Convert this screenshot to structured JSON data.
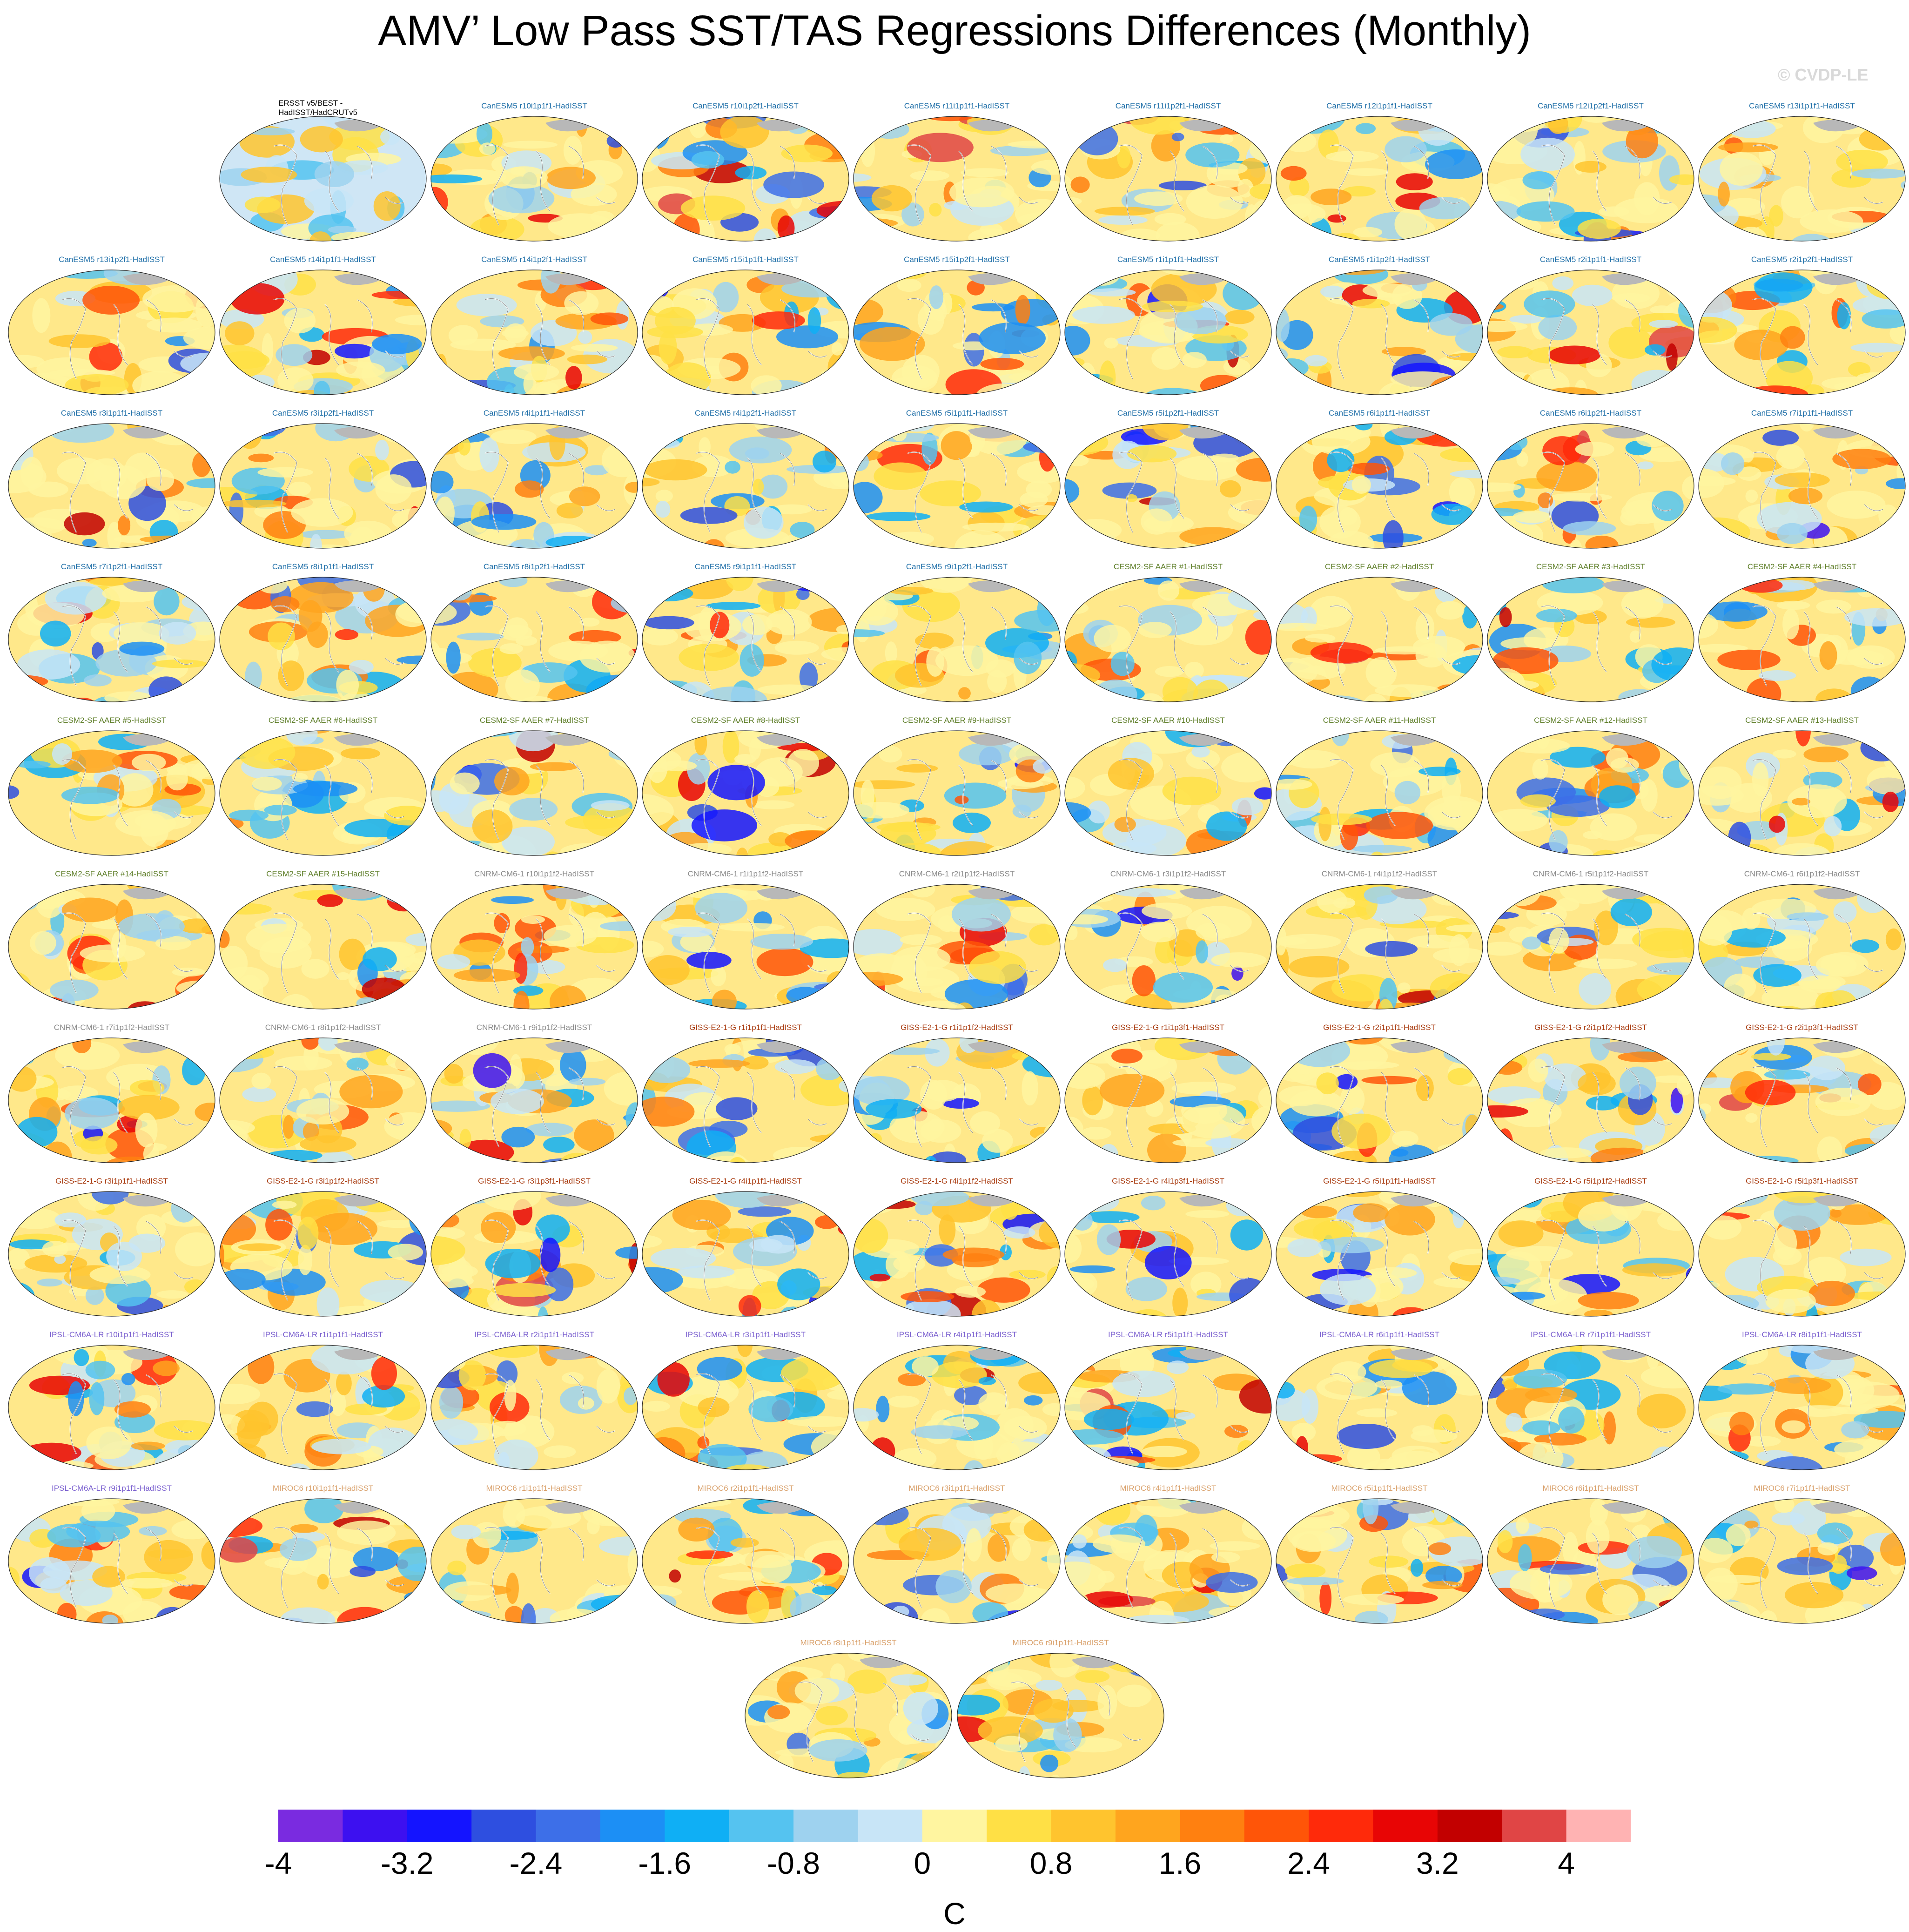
{
  "title": "AMV’ Low Pass SST/TAS Regressions Differences (Monthly)",
  "watermark": "© CVDP-LE",
  "colors": {
    "CanESM5": "#1f6fa8",
    "CESM2-SF AAER": "#5f7f2a",
    "CNRM-CM6-1": "#8a8a8a",
    "GISS-E2-1-G": "#a83a0e",
    "IPSL-CM6A-LR": "#7a5fcf",
    "MIROC6": "#d9a06a",
    "obs": "#000000"
  },
  "colorbar": {
    "units": "C",
    "levels": [
      -4.4,
      -4,
      -3.6,
      -3.2,
      -2.8,
      -2.4,
      -2,
      -1.6,
      -1.2,
      -0.8,
      -0.4,
      0,
      0.4,
      0.8,
      1.2,
      1.6,
      2,
      2.4,
      2.8,
      3.2,
      3.6,
      4,
      4.4
    ],
    "colors": [
      "#7a2be0",
      "#3d10f0",
      "#1414ff",
      "#2e4fe0",
      "#3d6fe8",
      "#1c8ff5",
      "#0faff5",
      "#55c3f0",
      "#9ed2ef",
      "#c8e5f7",
      "#fff5a0",
      "#ffe045",
      "#ffc42e",
      "#ffa51e",
      "#ff8010",
      "#ff5508",
      "#ff2a0a",
      "#e80505",
      "#c20000",
      "#e04545",
      "#ffb3b3"
    ],
    "tick_labels": [
      "-4",
      "-3.2",
      "-2.4",
      "-1.6",
      "-0.8",
      "0",
      "0.8",
      "1.6",
      "2.4",
      "3.2",
      "4"
    ]
  },
  "panels": [
    {
      "label": "ERSST v5/BEST -\nHadISST/HadCRUTv5",
      "model": "obs"
    },
    {
      "label": "CanESM5 r10i1p1f1-HadISST",
      "model": "CanESM5"
    },
    {
      "label": "CanESM5 r10i1p2f1-HadISST",
      "model": "CanESM5"
    },
    {
      "label": "CanESM5 r11i1p1f1-HadISST",
      "model": "CanESM5"
    },
    {
      "label": "CanESM5 r11i1p2f1-HadISST",
      "model": "CanESM5"
    },
    {
      "label": "CanESM5 r12i1p1f1-HadISST",
      "model": "CanESM5"
    },
    {
      "label": "CanESM5 r12i1p2f1-HadISST",
      "model": "CanESM5"
    },
    {
      "label": "CanESM5 r13i1p1f1-HadISST",
      "model": "CanESM5"
    },
    {
      "label": "CanESM5 r13i1p2f1-HadISST",
      "model": "CanESM5"
    },
    {
      "label": "CanESM5 r14i1p1f1-HadISST",
      "model": "CanESM5"
    },
    {
      "label": "CanESM5 r14i1p2f1-HadISST",
      "model": "CanESM5"
    },
    {
      "label": "CanESM5 r15i1p1f1-HadISST",
      "model": "CanESM5"
    },
    {
      "label": "CanESM5 r15i1p2f1-HadISST",
      "model": "CanESM5"
    },
    {
      "label": "CanESM5 r1i1p1f1-HadISST",
      "model": "CanESM5"
    },
    {
      "label": "CanESM5 r1i1p2f1-HadISST",
      "model": "CanESM5"
    },
    {
      "label": "CanESM5 r2i1p1f1-HadISST",
      "model": "CanESM5"
    },
    {
      "label": "CanESM5 r2i1p2f1-HadISST",
      "model": "CanESM5"
    },
    {
      "label": "CanESM5 r3i1p1f1-HadISST",
      "model": "CanESM5"
    },
    {
      "label": "CanESM5 r3i1p2f1-HadISST",
      "model": "CanESM5"
    },
    {
      "label": "CanESM5 r4i1p1f1-HadISST",
      "model": "CanESM5"
    },
    {
      "label": "CanESM5 r4i1p2f1-HadISST",
      "model": "CanESM5"
    },
    {
      "label": "CanESM5 r5i1p1f1-HadISST",
      "model": "CanESM5"
    },
    {
      "label": "CanESM5 r5i1p2f1-HadISST",
      "model": "CanESM5"
    },
    {
      "label": "CanESM5 r6i1p1f1-HadISST",
      "model": "CanESM5"
    },
    {
      "label": "CanESM5 r6i1p2f1-HadISST",
      "model": "CanESM5"
    },
    {
      "label": "CanESM5 r7i1p1f1-HadISST",
      "model": "CanESM5"
    },
    {
      "label": "CanESM5 r7i1p2f1-HadISST",
      "model": "CanESM5"
    },
    {
      "label": "CanESM5 r8i1p1f1-HadISST",
      "model": "CanESM5"
    },
    {
      "label": "CanESM5 r8i1p2f1-HadISST",
      "model": "CanESM5"
    },
    {
      "label": "CanESM5 r9i1p1f1-HadISST",
      "model": "CanESM5"
    },
    {
      "label": "CanESM5 r9i1p2f1-HadISST",
      "model": "CanESM5"
    },
    {
      "label": "CESM2-SF AAER #1-HadISST",
      "model": "CESM2-SF AAER"
    },
    {
      "label": "CESM2-SF AAER #2-HadISST",
      "model": "CESM2-SF AAER"
    },
    {
      "label": "CESM2-SF AAER #3-HadISST",
      "model": "CESM2-SF AAER"
    },
    {
      "label": "CESM2-SF AAER #4-HadISST",
      "model": "CESM2-SF AAER"
    },
    {
      "label": "CESM2-SF AAER #5-HadISST",
      "model": "CESM2-SF AAER"
    },
    {
      "label": "CESM2-SF AAER #6-HadISST",
      "model": "CESM2-SF AAER"
    },
    {
      "label": "CESM2-SF AAER #7-HadISST",
      "model": "CESM2-SF AAER"
    },
    {
      "label": "CESM2-SF AAER #8-HadISST",
      "model": "CESM2-SF AAER"
    },
    {
      "label": "CESM2-SF AAER #9-HadISST",
      "model": "CESM2-SF AAER"
    },
    {
      "label": "CESM2-SF AAER #10-HadISST",
      "model": "CESM2-SF AAER"
    },
    {
      "label": "CESM2-SF AAER #11-HadISST",
      "model": "CESM2-SF AAER"
    },
    {
      "label": "CESM2-SF AAER #12-HadISST",
      "model": "CESM2-SF AAER"
    },
    {
      "label": "CESM2-SF AAER #13-HadISST",
      "model": "CESM2-SF AAER"
    },
    {
      "label": "CESM2-SF AAER #14-HadISST",
      "model": "CESM2-SF AAER"
    },
    {
      "label": "CESM2-SF AAER #15-HadISST",
      "model": "CESM2-SF AAER"
    },
    {
      "label": "CNRM-CM6-1 r10i1p1f2-HadISST",
      "model": "CNRM-CM6-1"
    },
    {
      "label": "CNRM-CM6-1 r1i1p1f2-HadISST",
      "model": "CNRM-CM6-1"
    },
    {
      "label": "CNRM-CM6-1 r2i1p1f2-HadISST",
      "model": "CNRM-CM6-1"
    },
    {
      "label": "CNRM-CM6-1 r3i1p1f2-HadISST",
      "model": "CNRM-CM6-1"
    },
    {
      "label": "CNRM-CM6-1 r4i1p1f2-HadISST",
      "model": "CNRM-CM6-1"
    },
    {
      "label": "CNRM-CM6-1 r5i1p1f2-HadISST",
      "model": "CNRM-CM6-1"
    },
    {
      "label": "CNRM-CM6-1 r6i1p1f2-HadISST",
      "model": "CNRM-CM6-1"
    },
    {
      "label": "CNRM-CM6-1 r7i1p1f2-HadISST",
      "model": "CNRM-CM6-1"
    },
    {
      "label": "CNRM-CM6-1 r8i1p1f2-HadISST",
      "model": "CNRM-CM6-1"
    },
    {
      "label": "CNRM-CM6-1 r9i1p1f2-HadISST",
      "model": "CNRM-CM6-1"
    },
    {
      "label": "GISS-E2-1-G r1i1p1f1-HadISST",
      "model": "GISS-E2-1-G"
    },
    {
      "label": "GISS-E2-1-G r1i1p1f2-HadISST",
      "model": "GISS-E2-1-G"
    },
    {
      "label": "GISS-E2-1-G r1i1p3f1-HadISST",
      "model": "GISS-E2-1-G"
    },
    {
      "label": "GISS-E2-1-G r2i1p1f1-HadISST",
      "model": "GISS-E2-1-G"
    },
    {
      "label": "GISS-E2-1-G r2i1p1f2-HadISST",
      "model": "GISS-E2-1-G"
    },
    {
      "label": "GISS-E2-1-G r2i1p3f1-HadISST",
      "model": "GISS-E2-1-G"
    },
    {
      "label": "GISS-E2-1-G r3i1p1f1-HadISST",
      "model": "GISS-E2-1-G"
    },
    {
      "label": "GISS-E2-1-G r3i1p1f2-HadISST",
      "model": "GISS-E2-1-G"
    },
    {
      "label": "GISS-E2-1-G r3i1p3f1-HadISST",
      "model": "GISS-E2-1-G"
    },
    {
      "label": "GISS-E2-1-G r4i1p1f1-HadISST",
      "model": "GISS-E2-1-G"
    },
    {
      "label": "GISS-E2-1-G r4i1p1f2-HadISST",
      "model": "GISS-E2-1-G"
    },
    {
      "label": "GISS-E2-1-G r4i1p3f1-HadISST",
      "model": "GISS-E2-1-G"
    },
    {
      "label": "GISS-E2-1-G r5i1p1f1-HadISST",
      "model": "GISS-E2-1-G"
    },
    {
      "label": "GISS-E2-1-G r5i1p1f2-HadISST",
      "model": "GISS-E2-1-G"
    },
    {
      "label": "GISS-E2-1-G r5i1p3f1-HadISST",
      "model": "GISS-E2-1-G"
    },
    {
      "label": "IPSL-CM6A-LR r10i1p1f1-HadISST",
      "model": "IPSL-CM6A-LR"
    },
    {
      "label": "IPSL-CM6A-LR r1i1p1f1-HadISST",
      "model": "IPSL-CM6A-LR"
    },
    {
      "label": "IPSL-CM6A-LR r2i1p1f1-HadISST",
      "model": "IPSL-CM6A-LR"
    },
    {
      "label": "IPSL-CM6A-LR r3i1p1f1-HadISST",
      "model": "IPSL-CM6A-LR"
    },
    {
      "label": "IPSL-CM6A-LR r4i1p1f1-HadISST",
      "model": "IPSL-CM6A-LR"
    },
    {
      "label": "IPSL-CM6A-LR r5i1p1f1-HadISST",
      "model": "IPSL-CM6A-LR"
    },
    {
      "label": "IPSL-CM6A-LR r6i1p1f1-HadISST",
      "model": "IPSL-CM6A-LR"
    },
    {
      "label": "IPSL-CM6A-LR r7i1p1f1-HadISST",
      "model": "IPSL-CM6A-LR"
    },
    {
      "label": "IPSL-CM6A-LR r8i1p1f1-HadISST",
      "model": "IPSL-CM6A-LR"
    },
    {
      "label": "IPSL-CM6A-LR r9i1p1f1-HadISST",
      "model": "IPSL-CM6A-LR"
    },
    {
      "label": "MIROC6 r10i1p1f1-HadISST",
      "model": "MIROC6"
    },
    {
      "label": "MIROC6 r1i1p1f1-HadISST",
      "model": "MIROC6"
    },
    {
      "label": "MIROC6 r2i1p1f1-HadISST",
      "model": "MIROC6"
    },
    {
      "label": "MIROC6 r3i1p1f1-HadISST",
      "model": "MIROC6"
    },
    {
      "label": "MIROC6 r4i1p1f1-HadISST",
      "model": "MIROC6"
    },
    {
      "label": "MIROC6 r5i1p1f1-HadISST",
      "model": "MIROC6"
    },
    {
      "label": "MIROC6 r6i1p1f1-HadISST",
      "model": "MIROC6"
    },
    {
      "label": "MIROC6 r7i1p1f1-HadISST",
      "model": "MIROC6"
    },
    {
      "label": "MIROC6 r8i1p1f1-HadISST",
      "model": "MIROC6"
    },
    {
      "label": "MIROC6 r9i1p1f1-HadISST",
      "model": "MIROC6"
    }
  ]
}
